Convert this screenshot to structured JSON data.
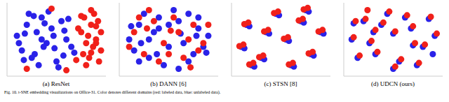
{
  "chart_data": [
    {
      "type": "scatter",
      "title": "(a) ResNet",
      "xlim": [
        -50,
        50
      ],
      "ylim": [
        -50,
        50
      ],
      "tick_labels": false,
      "series": [
        {
          "color": "#2a22e8",
          "x": [
            -40,
            -35,
            -30,
            -25,
            -20,
            -15,
            -10,
            -5,
            0,
            5,
            10,
            15,
            -38,
            -32,
            -22,
            -12,
            -2,
            8,
            18,
            -28,
            -18,
            -8,
            2,
            12,
            -33,
            -23,
            -13,
            -3,
            7,
            -15
          ],
          "values": [
            5,
            -15,
            20,
            -25,
            10,
            30,
            -5,
            15,
            -30,
            25,
            0,
            -10,
            -5,
            8,
            -20,
            22,
            -12,
            12,
            -18,
            35,
            -35,
            38,
            -38,
            28,
            -28,
            32,
            -10,
            5,
            -22,
            0
          ]
        },
        {
          "color": "#f0201a",
          "x": [
            25,
            30,
            35,
            40,
            45,
            28,
            33,
            38,
            43,
            22,
            27,
            32,
            37,
            42,
            30,
            35,
            40,
            20,
            25,
            45,
            -30,
            -5,
            10,
            35,
            40
          ],
          "values": [
            10,
            -5,
            20,
            0,
            -15,
            30,
            -25,
            35,
            -30,
            15,
            -20,
            5,
            -10,
            25,
            -35,
            40,
            -5,
            -28,
            32,
            10,
            -40,
            42,
            -42,
            -18,
            18
          ]
        }
      ]
    },
    {
      "type": "scatter",
      "title": "(b) DANN [6]",
      "xlim": [
        -50,
        50
      ],
      "ylim": [
        -50,
        50
      ],
      "tick_labels": false,
      "series": [
        {
          "color": "#2a22e8",
          "x": [
            -40,
            -30,
            -20,
            -10,
            0,
            10,
            20,
            30,
            40,
            -35,
            -25,
            -15,
            -5,
            5,
            15,
            25,
            35,
            -30,
            -10,
            10,
            30,
            -20,
            0,
            20,
            -38,
            38,
            -12,
            12,
            -28,
            28
          ],
          "values": [
            0,
            20,
            -25,
            30,
            -10,
            25,
            -30,
            15,
            5,
            -15,
            35,
            10,
            -35,
            40,
            -5,
            -20,
            -10,
            -30,
            15,
            -40,
            30,
            0,
            20,
            35,
            18,
            -18,
            -20,
            8,
            -5,
            5
          ]
        },
        {
          "color": "#f0201a",
          "x": [
            -35,
            -25,
            -15,
            -5,
            5,
            15,
            25,
            35,
            -30,
            -10,
            10,
            30,
            -20,
            0,
            20,
            40,
            -40,
            -22,
            2,
            22
          ],
          "values": [
            10,
            -20,
            25,
            -5,
            30,
            -25,
            20,
            -5,
            30,
            -30,
            10,
            -15,
            40,
            -20,
            0,
            20,
            -10,
            15,
            12,
            -38
          ]
        }
      ]
    },
    {
      "type": "scatter",
      "title": "(c) STSN [8]",
      "xlim": [
        -50,
        50
      ],
      "ylim": [
        -50,
        50
      ],
      "tick_labels": false,
      "series": [
        {
          "color": "#2a22e8",
          "x": [
            -35,
            -32,
            -20,
            -17,
            -5,
            -2,
            5,
            8,
            20,
            23,
            30,
            33,
            40,
            43,
            -40,
            -37,
            10,
            13,
            -15,
            -12,
            25,
            28,
            -30,
            -27
          ],
          "values": [
            20,
            18,
            -25,
            -27,
            35,
            33,
            0,
            -2,
            25,
            23,
            -20,
            -22,
            10,
            8,
            -10,
            -12,
            -35,
            -37,
            10,
            8,
            40,
            38,
            -35,
            -37
          ]
        },
        {
          "color": "#f0201a",
          "x": [
            -33,
            -37,
            -18,
            -22,
            -3,
            -7,
            7,
            3,
            22,
            18,
            32,
            28,
            42,
            38,
            -38,
            -42,
            12,
            8,
            -13,
            -17,
            27,
            23,
            -28,
            -32
          ],
          "values": [
            23,
            21,
            -22,
            -24,
            38,
            36,
            3,
            1,
            28,
            26,
            -17,
            -19,
            13,
            11,
            -7,
            -9,
            -32,
            -34,
            13,
            11,
            43,
            41,
            -32,
            -34
          ]
        }
      ]
    },
    {
      "type": "scatter",
      "title": "(d) UDCN (ours)",
      "xlim": [
        -50,
        50
      ],
      "ylim": [
        -50,
        50
      ],
      "tick_labels": false,
      "series": [
        {
          "color": "#2a22e8",
          "x": [
            -42,
            -30,
            -18,
            -6,
            6,
            18,
            30,
            42,
            -36,
            -24,
            -12,
            0,
            12,
            24,
            36,
            -40,
            -20,
            0,
            20,
            40
          ],
          "values": [
            0,
            25,
            -20,
            35,
            -30,
            15,
            -10,
            5,
            -25,
            -5,
            20,
            -40,
            30,
            -35,
            28,
            22,
            10,
            8,
            -8,
            -20
          ]
        },
        {
          "color": "#f0201a",
          "x": [
            -40,
            -28,
            -16,
            -4,
            8,
            20,
            32,
            44,
            -34,
            -22,
            -10,
            2,
            14,
            26,
            38,
            -38,
            -18,
            2,
            22,
            -26
          ],
          "values": [
            3,
            28,
            -17,
            38,
            -27,
            18,
            -7,
            8,
            -22,
            -2,
            23,
            -37,
            33,
            -32,
            31,
            25,
            13,
            11,
            -5,
            40
          ]
        }
      ]
    }
  ],
  "caption": "Fig. 10. t-SNE embedding visualizations on Office-31. Color denotes different domains (red: labeled data, blue: unlabeled data)."
}
